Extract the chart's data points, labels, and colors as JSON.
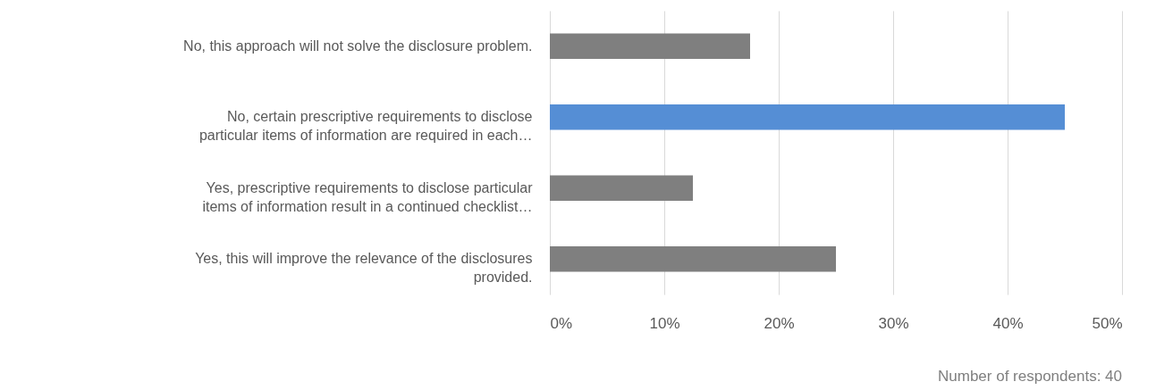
{
  "chart_data": {
    "type": "bar",
    "orientation": "horizontal",
    "categories": [
      "No, this approach will not solve the disclosure problem.",
      "No, certain prescriptive requirements to disclose particular items of information are required in each…",
      "Yes, prescriptive requirements to disclose particular items of information result in a continued checklist…",
      "Yes, this will improve the relevance of the disclosures provided."
    ],
    "values": [
      17.5,
      45,
      12.5,
      25
    ],
    "colors": [
      "#7f7f7f",
      "#558ed5",
      "#7f7f7f",
      "#7f7f7f"
    ],
    "xlim": [
      0,
      50
    ],
    "xticks": [
      {
        "value": 0,
        "label": "0%"
      },
      {
        "value": 10,
        "label": "10%"
      },
      {
        "value": 20,
        "label": "20%"
      },
      {
        "value": 30,
        "label": "30%"
      },
      {
        "value": 40,
        "label": "40%"
      },
      {
        "value": 50,
        "label": "50%"
      }
    ],
    "grid": "x",
    "annotations": [
      "Number of respondents: 40"
    ]
  }
}
